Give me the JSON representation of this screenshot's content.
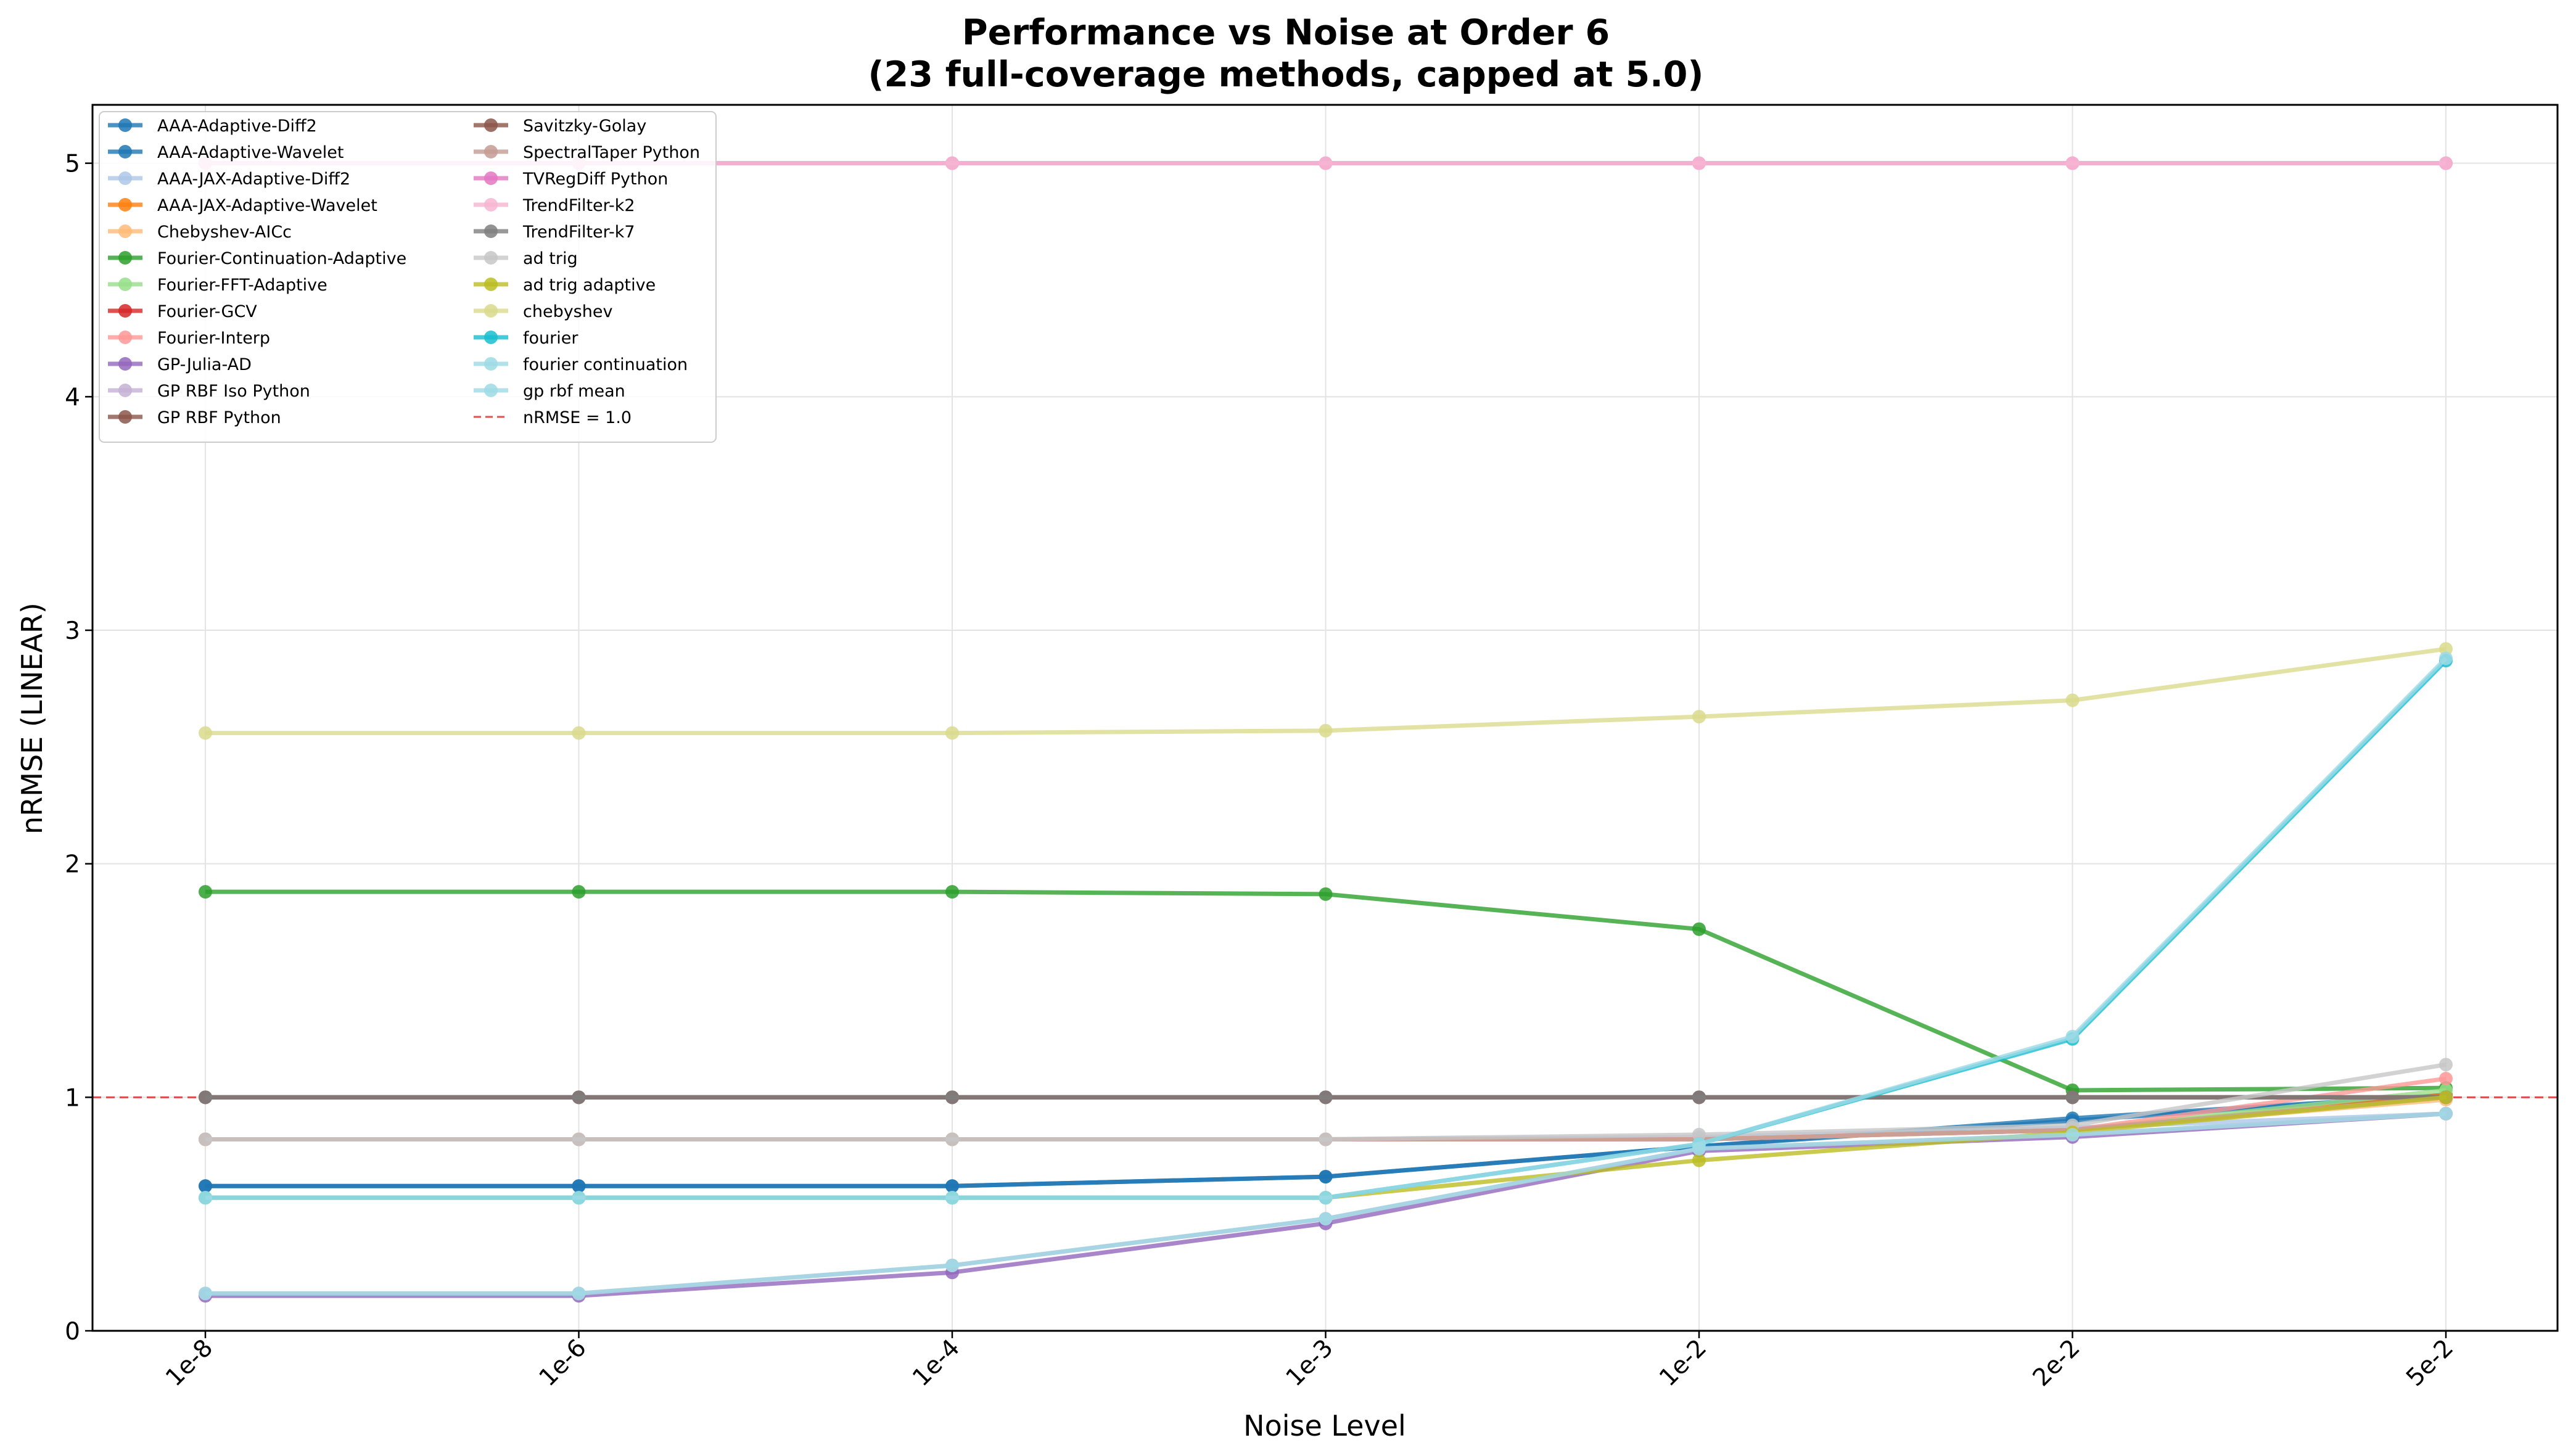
{
  "chart_data": {
    "type": "line",
    "title": "Performance vs Noise at Order 6",
    "subtitle": "(23 full-coverage methods, capped at 5.0)",
    "xlabel": "Noise Level",
    "ylabel": "nRMSE (LINEAR)",
    "categories": [
      "1e-8",
      "1e-6",
      "1e-4",
      "1e-3",
      "1e-2",
      "2e-2",
      "5e-2"
    ],
    "ylim": [
      0,
      5.25
    ],
    "yticks": [
      "0",
      "1",
      "2",
      "3",
      "4",
      "5"
    ],
    "grid": true,
    "legend_position": "upper-left",
    "series": [
      {
        "name": "AAA-Adaptive-Diff2",
        "color": "#1f77b4",
        "values": [
          0.62,
          0.62,
          0.62,
          0.66,
          0.79,
          0.91,
          1.01
        ]
      },
      {
        "name": "AAA-Adaptive-Wavelet",
        "color": "#1f77b4",
        "values": [
          0.62,
          0.62,
          0.62,
          0.66,
          0.79,
          0.9,
          1.01
        ]
      },
      {
        "name": "AAA-JAX-Adaptive-Diff2",
        "color": "#aec7e8",
        "values": [
          0.82,
          0.82,
          0.82,
          0.82,
          0.83,
          0.87,
          0.93
        ]
      },
      {
        "name": "AAA-JAX-Adaptive-Wavelet",
        "color": "#ff7f0e",
        "values": [
          0.82,
          0.82,
          0.82,
          0.82,
          0.82,
          0.86,
          1.01
        ]
      },
      {
        "name": "Chebyshev-AICc",
        "color": "#ffbb78",
        "values": [
          0.82,
          0.82,
          0.82,
          0.82,
          0.82,
          0.86,
          0.99
        ]
      },
      {
        "name": "Fourier-Continuation-Adaptive",
        "color": "#2ca02c",
        "values": [
          1.88,
          1.88,
          1.88,
          1.87,
          1.72,
          1.03,
          1.04
        ]
      },
      {
        "name": "Fourier-FFT-Adaptive",
        "color": "#98df8a",
        "values": [
          0.82,
          0.82,
          0.82,
          0.82,
          0.82,
          0.86,
          1.03
        ]
      },
      {
        "name": "Fourier-GCV",
        "color": "#d62728",
        "values": [
          1.0,
          1.0,
          1.0,
          1.0,
          1.0,
          1.0,
          1.0
        ]
      },
      {
        "name": "Fourier-Interp",
        "color": "#ff9896",
        "values": [
          0.82,
          0.82,
          0.82,
          0.82,
          0.82,
          0.86,
          1.08
        ]
      },
      {
        "name": "GP-Julia-AD",
        "color": "#9467bd",
        "values": [
          0.15,
          0.15,
          0.25,
          0.46,
          0.77,
          0.83,
          0.93
        ]
      },
      {
        "name": "GP RBF Iso Python",
        "color": "#c5b0d5",
        "values": [
          0.16,
          0.16,
          0.28,
          0.48,
          0.78,
          0.84,
          0.93
        ]
      },
      {
        "name": "GP RBF Python",
        "color": "#8c564b",
        "values": [
          1.0,
          1.0,
          1.0,
          1.0,
          1.0,
          1.0,
          1.0
        ]
      },
      {
        "name": "Savitzky-Golay",
        "color": "#8c564b",
        "values": [
          1.0,
          1.0,
          1.0,
          1.0,
          1.0,
          1.0,
          1.0
        ]
      },
      {
        "name": "SpectralTaper Python",
        "color": "#c49c94",
        "values": [
          0.82,
          0.82,
          0.82,
          0.82,
          0.82,
          0.86,
          1.0
        ]
      },
      {
        "name": "TVRegDiff Python",
        "color": "#e377c2",
        "values": [
          5.0,
          5.0,
          5.0,
          5.0,
          5.0,
          5.0,
          5.0
        ]
      },
      {
        "name": "TrendFilter-k2",
        "color": "#f7b6d2",
        "values": [
          5.0,
          5.0,
          5.0,
          5.0,
          5.0,
          5.0,
          5.0
        ]
      },
      {
        "name": "TrendFilter-k7",
        "color": "#7f7f7f",
        "values": [
          1.0,
          1.0,
          1.0,
          1.0,
          1.0,
          1.0,
          1.0
        ]
      },
      {
        "name": "ad trig",
        "color": "#c7c7c7",
        "values": [
          0.82,
          0.82,
          0.82,
          0.82,
          0.84,
          0.88,
          1.14
        ]
      },
      {
        "name": "ad trig adaptive",
        "color": "#bcbd22",
        "values": [
          0.57,
          0.57,
          0.57,
          0.57,
          0.73,
          0.85,
          1.0
        ]
      },
      {
        "name": "chebyshev",
        "color": "#dbdb8d",
        "values": [
          2.56,
          2.56,
          2.56,
          2.57,
          2.63,
          2.7,
          2.92
        ]
      },
      {
        "name": "fourier",
        "color": "#17becf",
        "values": [
          0.57,
          0.57,
          0.57,
          0.57,
          0.8,
          1.25,
          2.87
        ]
      },
      {
        "name": "fourier continuation",
        "color": "#9edae5",
        "values": [
          0.57,
          0.57,
          0.57,
          0.57,
          0.8,
          1.26,
          2.88
        ]
      },
      {
        "name": "gp rbf mean",
        "color": "#9edae5",
        "values": [
          0.16,
          0.16,
          0.28,
          0.48,
          0.78,
          0.84,
          0.93
        ]
      }
    ],
    "reference_line": {
      "name": "nRMSE = 1.0",
      "value": 1.0,
      "color": "#d62728"
    }
  }
}
